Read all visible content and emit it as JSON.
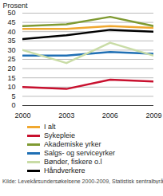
{
  "chart_data": {
    "type": "line",
    "y_label": "Prosent",
    "caption": "Kilde: Levekårsundersøkelsene 2000-2009, Statistisk sentralbyrå.",
    "x": [
      2000,
      2003,
      2006,
      2009
    ],
    "xlim": [
      2000,
      2009
    ],
    "xticks": [
      2000,
      2003,
      2006,
      2009
    ],
    "ylim": [
      0,
      50
    ],
    "yticks": [
      0,
      5,
      10,
      15,
      20,
      25,
      30,
      35,
      40,
      45,
      50
    ],
    "grid": true,
    "legend": "bottom",
    "series": [
      {
        "name": "I alt",
        "color": "#f0a830",
        "values": [
          41.5,
          41.5,
          43,
          42
        ]
      },
      {
        "name": "Sykepleie",
        "color": "#c8102e",
        "values": [
          10,
          9,
          14,
          13
        ]
      },
      {
        "name": "Akademiske yrker",
        "color": "#7f9a32",
        "values": [
          43,
          44,
          48,
          43
        ]
      },
      {
        "name": "Salgs- og serviceyrker",
        "color": "#1f6fb4",
        "values": [
          27,
          27,
          29,
          28
        ]
      },
      {
        "name": "Bønder, fiskere o.l",
        "color": "#c9dca6",
        "values": [
          30,
          23,
          34,
          27
        ]
      },
      {
        "name": "Håndverkere",
        "color": "#000000",
        "values": [
          36,
          38,
          41,
          40
        ]
      }
    ]
  }
}
